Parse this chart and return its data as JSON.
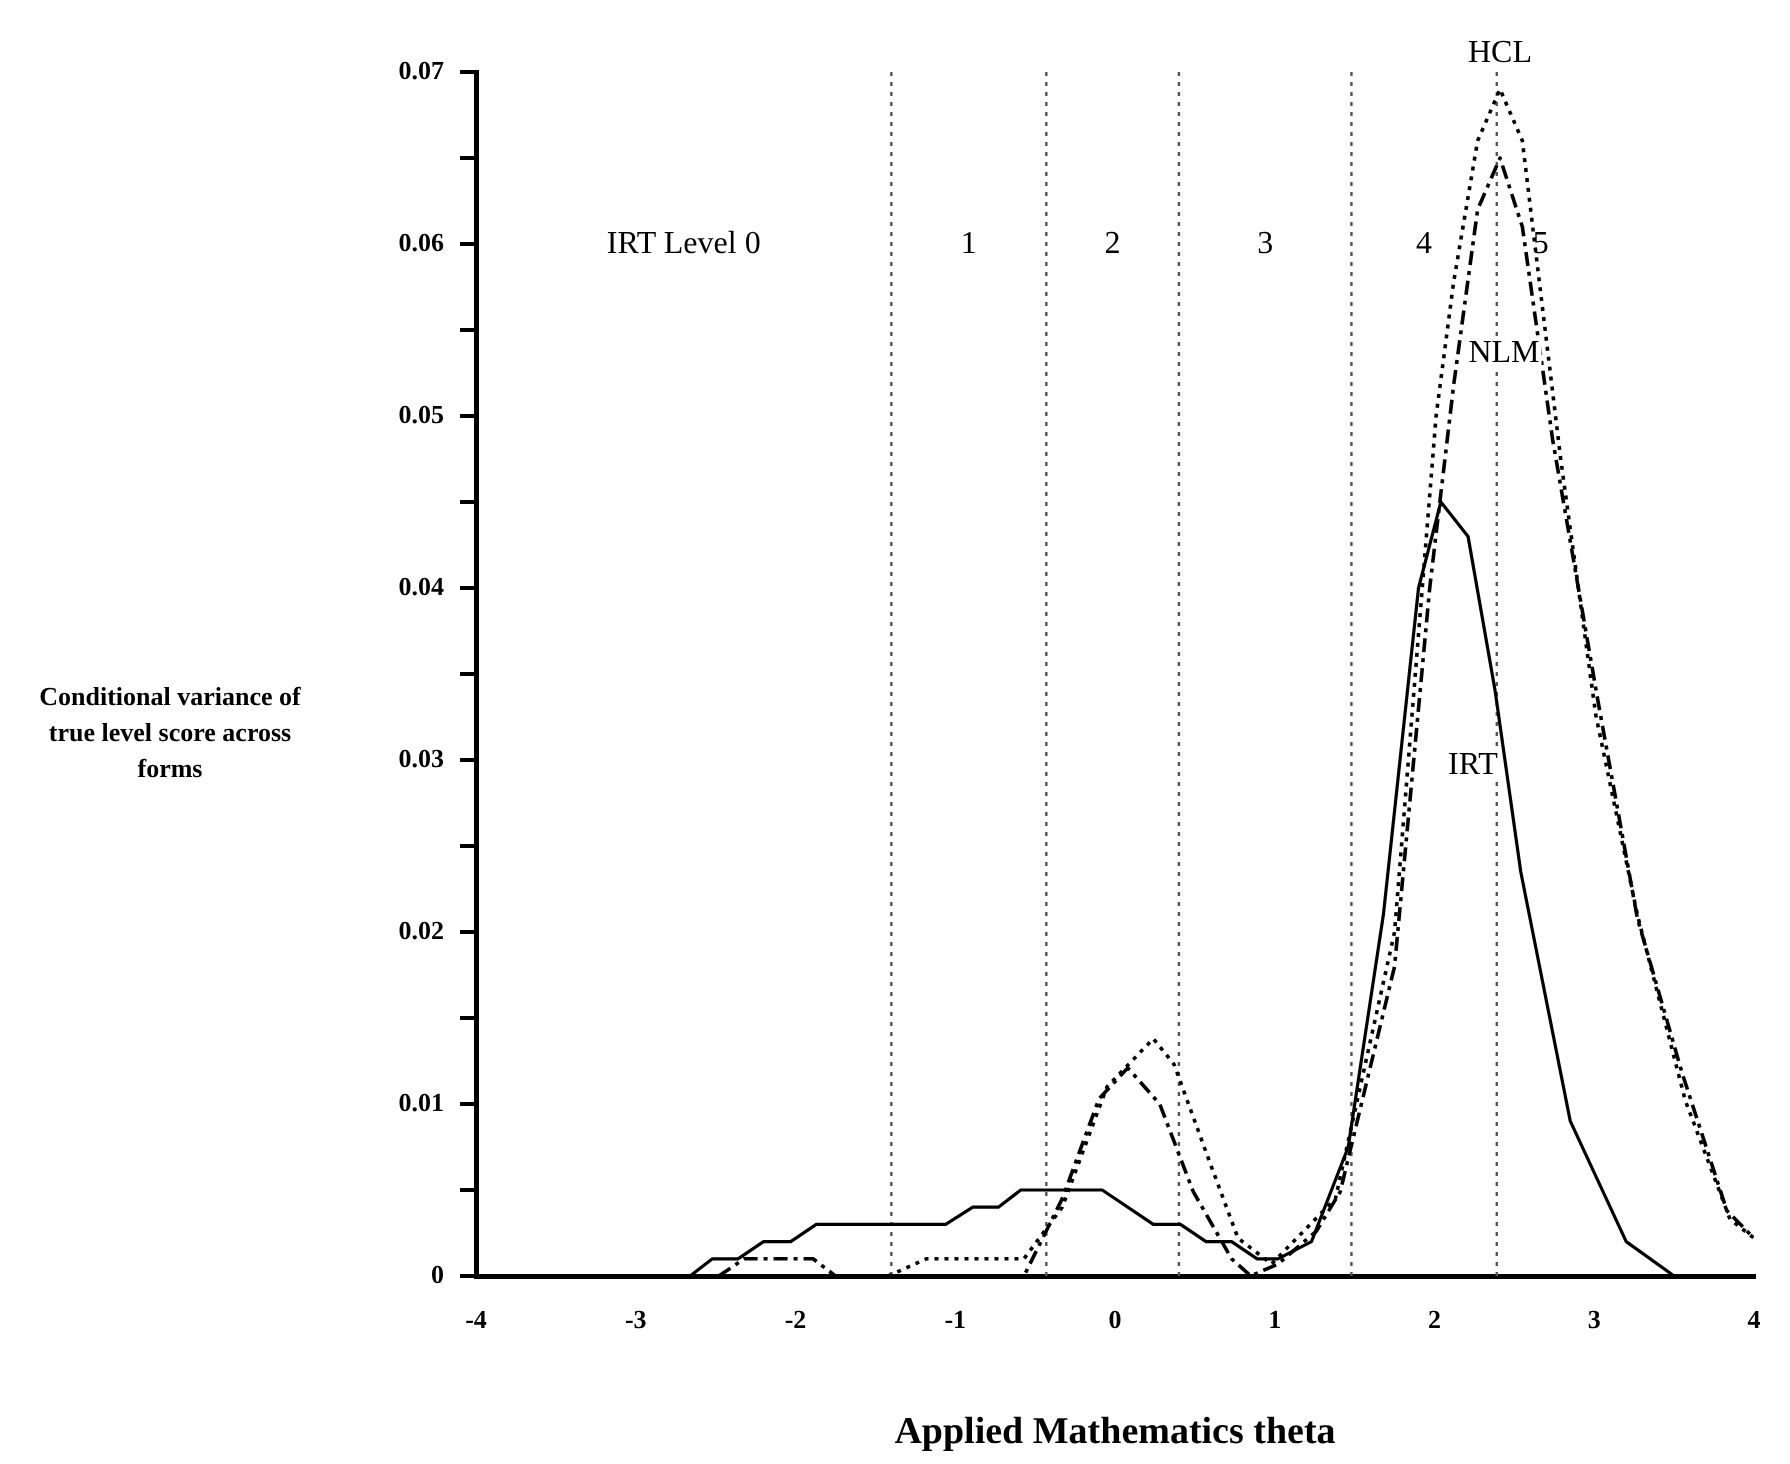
{
  "chart_data": {
    "type": "line",
    "xlabel": "Applied Mathematics theta",
    "ylabel": "Conditional variance of true level score across forms",
    "xlim": [
      -4,
      4
    ],
    "xticks": [
      -4,
      -3,
      -2,
      -1,
      0,
      1,
      2,
      3,
      4
    ],
    "ylim": [
      0,
      0.07
    ],
    "yticks": [
      0,
      {
        "value": 0.005,
        "label": null
      },
      0.01,
      {
        "value": 0.015,
        "label": null
      },
      0.02,
      {
        "value": 0.025,
        "label": null
      },
      0.03,
      {
        "value": 0.035,
        "label": null
      },
      0.04,
      {
        "value": 0.045,
        "label": null
      },
      0.05,
      {
        "value": 0.055,
        "label": null
      },
      0.06,
      {
        "value": 0.065,
        "label": null
      },
      0.07
    ],
    "grid": false,
    "legend": false,
    "marker": "none",
    "series": [
      {
        "name": "IRT",
        "color": "#000000",
        "line_style": "solid",
        "x": [
          -2.66,
          -2.52,
          -2.36,
          -2.2,
          -2.03,
          -1.87,
          -1.06,
          -0.89,
          -0.73,
          -0.59,
          -0.08,
          0.24,
          0.41,
          0.57,
          0.73,
          0.89,
          1.02,
          1.23,
          1.46,
          1.68,
          1.9,
          2.04,
          2.21,
          2.38,
          2.54,
          2.85,
          3.2,
          3.5
        ],
        "values": [
          0,
          0.001,
          0.001,
          0.002,
          0.002,
          0.003,
          0.003,
          0.004,
          0.004,
          0.005,
          0.005,
          0.003,
          0.003,
          0.002,
          0.002,
          0.001,
          0.001,
          0.002,
          0.0075,
          0.021,
          0.04,
          0.045,
          0.043,
          0.034,
          0.0235,
          0.009,
          0.002,
          0
        ]
      },
      {
        "name": "NLM",
        "color": "#000000",
        "line_style": "dashed",
        "x": [
          -2.48,
          -2.32,
          -1.89,
          -1.75,
          -0.57,
          -0.33,
          -0.1,
          0.08,
          0.28,
          0.49,
          0.73,
          0.85,
          1.02,
          1.26,
          1.41,
          1.75,
          1.97,
          2.12,
          2.27,
          2.41,
          2.55,
          2.74,
          3.02,
          3.27,
          3.55,
          3.83,
          4
        ],
        "values": [
          0,
          0.001,
          0.001,
          0,
          0,
          0.0045,
          0.0103,
          0.0121,
          0.01,
          0.0049,
          0.001,
          0,
          0.0007,
          0.0026,
          0.0049,
          0.018,
          0.04,
          0.0518,
          0.062,
          0.065,
          0.061,
          0.0486,
          0.0336,
          0.0208,
          0.0118,
          0.0038,
          0.0022
        ]
      },
      {
        "name": "HCL",
        "color": "#000000",
        "line_style": "dotted",
        "x": [
          -1.42,
          -1.18,
          -0.57,
          -0.33,
          -0.05,
          0.24,
          0.37,
          0.57,
          0.77,
          0.98,
          1.38,
          1.75,
          2.01,
          2.12,
          2.27,
          2.41,
          2.55,
          2.79,
          3.01,
          3.27,
          3.57,
          3.85,
          4
        ],
        "values": [
          0,
          0.001,
          0.001,
          0.004,
          0.011,
          0.0138,
          0.0123,
          0.0072,
          0.0022,
          0.0007,
          0.0045,
          0.02,
          0.05,
          0.0578,
          0.066,
          0.069,
          0.066,
          0.0475,
          0.0326,
          0.021,
          0.0102,
          0.0033,
          0.0022
        ]
      }
    ],
    "ref_lines": [
      {
        "axis": "x",
        "value": -1.4,
        "color": "#555555",
        "line_style": "dotted"
      },
      {
        "axis": "x",
        "value": -0.43,
        "color": "#555555",
        "line_style": "dotted"
      },
      {
        "axis": "x",
        "value": 0.4,
        "color": "#555555",
        "line_style": "dotted"
      },
      {
        "axis": "x",
        "value": 1.48,
        "color": "#555555",
        "line_style": "dotted"
      },
      {
        "axis": "x",
        "value": 2.39,
        "color": "#555555",
        "line_style": "dotted"
      }
    ],
    "annotations": [
      "IRT Level 0",
      "1",
      "2",
      "3",
      "4",
      "5"
    ]
  }
}
